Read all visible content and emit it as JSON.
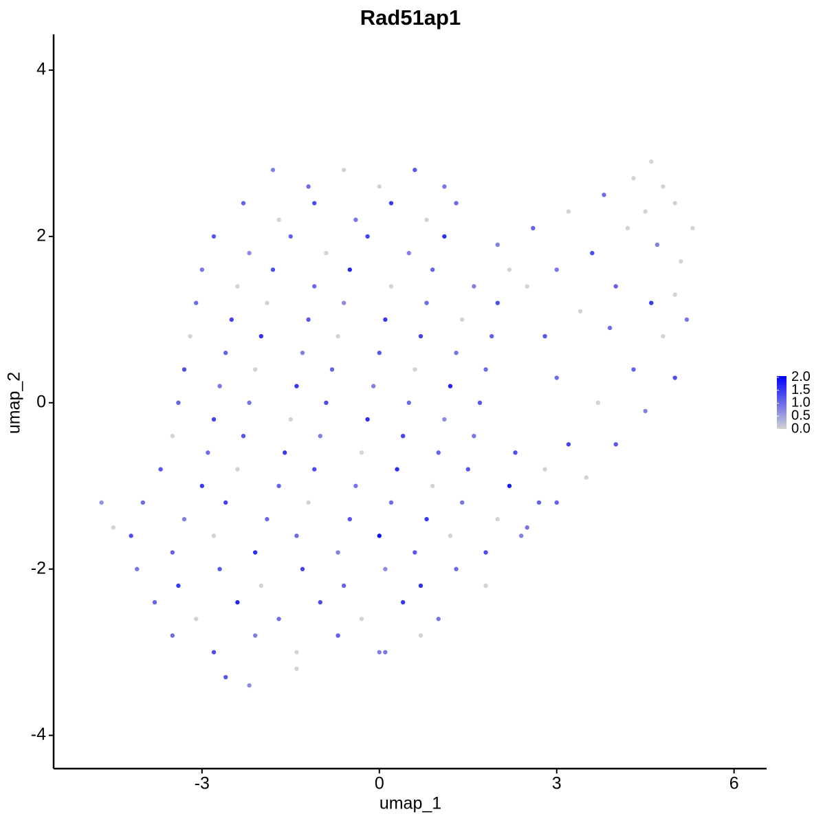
{
  "chart_data": {
    "type": "scatter",
    "title": "Rad51ap1",
    "x_label": "umap_1",
    "y_label": "umap_2",
    "xlim": [
      -5.51,
      6.55
    ],
    "ylim": [
      -4.4,
      4.43
    ],
    "xticks": [
      -3,
      0,
      3,
      6
    ],
    "yticks": [
      -4,
      -2,
      0,
      2,
      4
    ],
    "color_low": "#d3d3d3",
    "color_high": "#0000ff",
    "clim": [
      0,
      2.05
    ],
    "colorbar_ticks": [
      {
        "value": 0,
        "label": "0.0"
      },
      0.5,
      {
        "value": 1,
        "label": "1.0"
      },
      1.5,
      {
        "value": 2,
        "label": "2.0"
      }
    ],
    "x": [
      -1.8,
      -1.2,
      -0.6,
      0,
      0.6,
      1.1,
      -2.3,
      -1.7,
      -1.1,
      -0.4,
      0.2,
      0.8,
      1.3,
      -2.8,
      -2.2,
      -1.5,
      -0.9,
      -0.2,
      0.5,
      1.1,
      -3.0,
      -2.4,
      -1.8,
      -1.1,
      -0.5,
      0.2,
      0.9,
      1.6,
      2.2,
      -3.1,
      -2.5,
      -1.9,
      -1.2,
      -0.6,
      0.1,
      0.8,
      1.4,
      2.0,
      -3.2,
      -2.6,
      -2.0,
      -1.3,
      -0.7,
      0,
      0.7,
      1.3,
      1.9,
      -3.3,
      -2.7,
      -2.1,
      -1.4,
      -0.8,
      -0.1,
      0.6,
      1.2,
      1.8,
      -3.4,
      -2.8,
      -2.2,
      -1.5,
      -0.9,
      -0.2,
      0.5,
      1.1,
      1.7,
      -3.5,
      -2.9,
      -2.3,
      -1.6,
      -1.0,
      -0.3,
      0.4,
      1.0,
      1.6,
      2.3,
      -3.7,
      -3.0,
      -2.4,
      -1.7,
      -1.1,
      -0.4,
      0.3,
      0.9,
      1.5,
      2.2,
      2.8,
      -4.0,
      -3.3,
      -2.6,
      -1.9,
      -1.2,
      -0.5,
      0.2,
      0.8,
      1.4,
      2.0,
      2.7,
      -4.2,
      -3.5,
      -2.8,
      -2.1,
      -1.4,
      -0.7,
      0,
      0.6,
      1.2,
      1.8,
      2.4,
      -4.1,
      -3.4,
      -2.7,
      -2.0,
      -1.3,
      -0.6,
      0.1,
      0.7,
      1.3,
      1.8,
      -3.8,
      -3.1,
      -2.4,
      -1.7,
      -1.0,
      -0.3,
      0.4,
      1.0,
      -3.5,
      -2.8,
      -2.1,
      -1.4,
      -0.7,
      0.1,
      0.7,
      -2.6,
      -2.2,
      -1.4,
      0,
      -4.7,
      -4.5,
      2.5,
      3.0,
      3.5,
      4.0,
      4.5,
      5.0,
      3.2,
      3.7,
      4.3,
      4.8,
      5.2,
      3.0,
      2.0,
      2.6,
      3.2,
      3.8,
      4.3,
      4.6,
      5.0,
      5.3,
      5.1,
      4.7,
      4.2,
      3.6,
      3.0,
      2.5,
      4.0,
      4.6,
      3.4,
      2.8,
      3.9,
      5.0,
      4.8,
      4.5
    ],
    "y": [
      2.8,
      2.6,
      2.8,
      2.6,
      2.8,
      2.6,
      2.4,
      2.2,
      2.4,
      2.2,
      2.4,
      2.2,
      2.4,
      2.0,
      1.8,
      2.0,
      1.8,
      2.0,
      1.8,
      2.0,
      1.6,
      1.4,
      1.6,
      1.4,
      1.6,
      1.4,
      1.6,
      1.4,
      1.6,
      1.2,
      1.0,
      1.2,
      1.0,
      1.2,
      1.0,
      1.2,
      1.0,
      1.2,
      0.8,
      0.6,
      0.8,
      0.6,
      0.8,
      0.6,
      0.8,
      0.6,
      0.8,
      0.4,
      0.2,
      0.4,
      0.2,
      0.4,
      0.2,
      0.4,
      0.2,
      0.4,
      0,
      -0.2,
      0,
      -0.2,
      0,
      -0.2,
      0,
      -0.2,
      0,
      -0.4,
      -0.6,
      -0.4,
      -0.6,
      -0.4,
      -0.6,
      -0.4,
      -0.6,
      -0.4,
      -0.6,
      -0.8,
      -1.0,
      -0.8,
      -1.0,
      -0.8,
      -1.0,
      -0.8,
      -1.0,
      -0.8,
      -1.0,
      -0.8,
      -1.2,
      -1.4,
      -1.2,
      -1.4,
      -1.2,
      -1.4,
      -1.2,
      -1.4,
      -1.2,
      -1.4,
      -1.2,
      -1.6,
      -1.8,
      -1.6,
      -1.8,
      -1.6,
      -1.8,
      -1.6,
      -1.8,
      -1.6,
      -1.8,
      -1.6,
      -2.0,
      -2.2,
      -2.0,
      -2.2,
      -2.0,
      -2.2,
      -2.0,
      -2.2,
      -2.0,
      -2.2,
      -2.4,
      -2.6,
      -2.4,
      -2.6,
      -2.4,
      -2.6,
      -2.4,
      -2.6,
      -2.8,
      -3.0,
      -2.8,
      -3.0,
      -2.8,
      -3.0,
      -2.8,
      -3.3,
      -3.4,
      -3.2,
      -3.0,
      -1.2,
      -1.5,
      -1.5,
      -1.2,
      -0.9,
      -0.5,
      -0.1,
      0.3,
      -0.5,
      0,
      0.4,
      0.8,
      1.0,
      0.3,
      1.9,
      2.1,
      2.3,
      2.5,
      2.7,
      2.9,
      2.4,
      2.1,
      1.7,
      1.9,
      2.1,
      1.8,
      1.6,
      1.4,
      1.4,
      1.2,
      1.1,
      0.8,
      0.9,
      1.3,
      2.6,
      2.3
    ],
    "values": [
      0.8,
      1.0,
      0,
      0,
      1.2,
      0.9,
      1.1,
      0,
      1.3,
      0.9,
      1.5,
      0,
      1.0,
      1.2,
      0.7,
      1.1,
      0,
      1.4,
      0.8,
      1.6,
      0.9,
      0,
      1.3,
      1.0,
      1.7,
      0,
      1.1,
      0.8,
      0,
      1.0,
      1.4,
      0,
      1.2,
      0.7,
      1.5,
      1.0,
      0,
      1.3,
      0,
      1.1,
      1.6,
      0.8,
      0,
      1.2,
      1.4,
      0.9,
      1.1,
      1.3,
      0.9,
      0,
      1.5,
      1.1,
      0.8,
      0,
      1.7,
      1.0,
      1.1,
      1.4,
      0.9,
      0,
      1.3,
      1.6,
      1.0,
      0.7,
      1.2,
      0,
      1.0,
      1.2,
      1.5,
      0.8,
      0,
      1.4,
      1.1,
      0.9,
      1.3,
      1.2,
      1.5,
      0,
      1.1,
      1.3,
      0.9,
      1.6,
      0,
      1.2,
      1.8,
      0,
      1.0,
      0.8,
      1.4,
      1.0,
      0,
      1.2,
      1.0,
      1.5,
      0.9,
      0,
      1.1,
      1.3,
      1.1,
      0,
      1.6,
      1.0,
      0.8,
      1.9,
      1.2,
      0,
      1.3,
      0.8,
      0.9,
      1.5,
      1.2,
      0,
      1.4,
      1.1,
      0.7,
      1.6,
      1.0,
      0,
      1.1,
      0,
      1.7,
      1.0,
      1.3,
      0,
      1.5,
      0.9,
      1.0,
      1.3,
      0.8,
      0,
      1.1,
      0.9,
      0,
      1.2,
      0.7,
      0,
      0.8,
      0.6,
      0,
      0.9,
      1.1,
      0,
      1.2,
      0.8,
      1.3,
      1.4,
      0,
      1.1,
      0,
      0.9,
      1.0,
      0.8,
      1.1,
      0,
      1.0,
      0,
      0,
      0,
      0,
      0,
      0.8,
      0,
      1.3,
      0.9,
      0,
      1.1,
      1.5,
      0,
      1.2,
      1.0,
      0,
      0,
      0
    ]
  }
}
